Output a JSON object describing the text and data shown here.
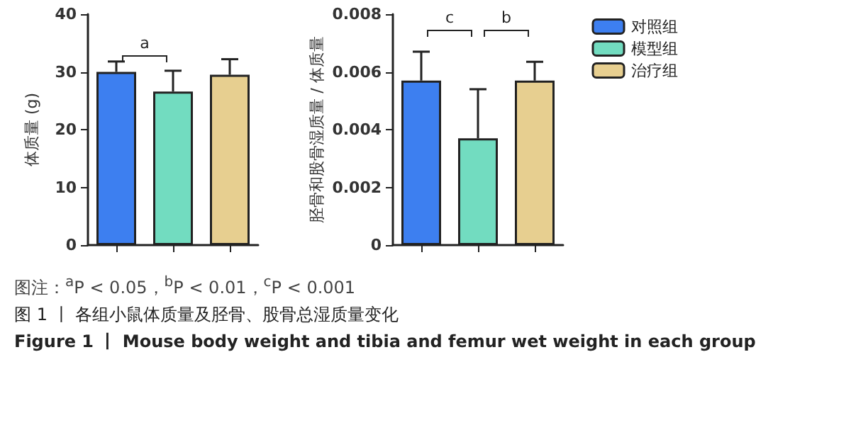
{
  "chart_data": [
    {
      "type": "bar",
      "ylabel": "体质量 (g)",
      "categories": [
        null,
        null,
        null
      ],
      "series": [
        {
          "color": "#3d7ff0",
          "values": [
            30,
            null,
            null
          ],
          "errors": [
            1.8,
            null,
            null
          ]
        },
        {
          "color": "#72dcc0",
          "values": [
            null,
            26.6,
            null
          ],
          "errors": [
            null,
            3.6,
            null
          ]
        },
        {
          "color": "#e7cf90",
          "values": [
            null,
            null,
            29.5
          ],
          "errors": [
            null,
            null,
            2.7
          ]
        }
      ],
      "ylim": [
        0,
        40
      ],
      "yticks": [
        0,
        10,
        20,
        30,
        40
      ],
      "grid": false,
      "legend": false,
      "annotations": [
        "a",
        "图注：$^{a}$P < 0.05，$^{b}$P < 0.01，$^{c}$P < 0.001",
        "图 1 丨 各组小鼠体质量及胫骨、股骨总湿质量变化",
        "Figure 1 丨 Mouse body weight and tibia and femur wet weight in each group"
      ]
    },
    {
      "type": "bar",
      "ylabel": "胫骨和股骨湿质量 / 体质量",
      "categories": [
        null,
        null,
        null
      ],
      "series": [
        {
          "name": "对照组",
          "color": "#3d7ff0",
          "values": [
            0.0057,
            null,
            null
          ],
          "errors": [
            0.001,
            null,
            null
          ]
        },
        {
          "name": "模型组",
          "color": "#72dcc0",
          "values": [
            null,
            0.0037,
            null
          ],
          "errors": [
            null,
            0.0017,
            null
          ]
        },
        {
          "name": "治疗组",
          "color": "#e7cf90",
          "values": [
            null,
            null,
            0.0057
          ],
          "errors": [
            null,
            null,
            0.00065
          ]
        }
      ],
      "ylim": [
        0,
        0.008
      ],
      "yticks": [
        0,
        0.002,
        0.004,
        0.006,
        0.008
      ],
      "grid": false,
      "legend": "right",
      "annotations": [
        "c",
        "b"
      ]
    }
  ]
}
